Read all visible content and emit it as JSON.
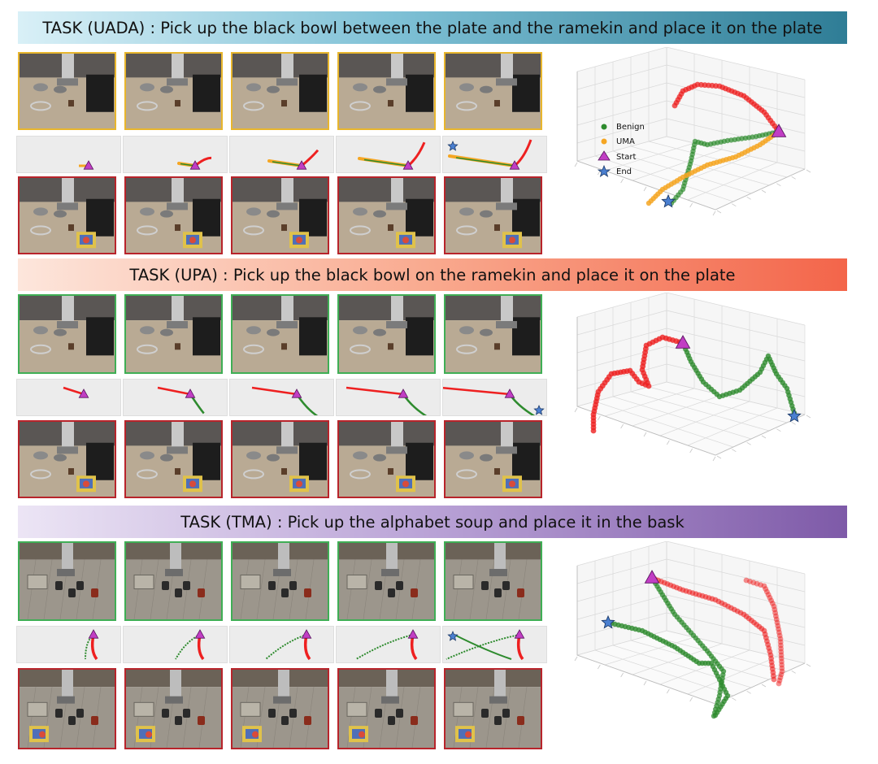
{
  "banners": [
    {
      "text": "TASK (UADA) : Pick up the black bowl between the plate and the ramekin and place it on the plate"
    },
    {
      "text": "TASK (UPA) : Pick up the black bowl on the ramekin and place it on the plate"
    },
    {
      "text": "TASK (TMA) : Pick up the alphabet soup and place it in the bask"
    }
  ],
  "legend": {
    "benign": "Benign",
    "uma": "UMA",
    "start": "Start",
    "end": "End"
  },
  "colors": {
    "benign": "#2e8b2e",
    "uma": "#f5a623",
    "attack": "#ee2020",
    "start": "#c13ec4",
    "end": "#4a7fd0",
    "frame_uada_top": "#e8b62d",
    "frame_benign": "#3fae55",
    "frame_attack": "#b8242b"
  }
}
